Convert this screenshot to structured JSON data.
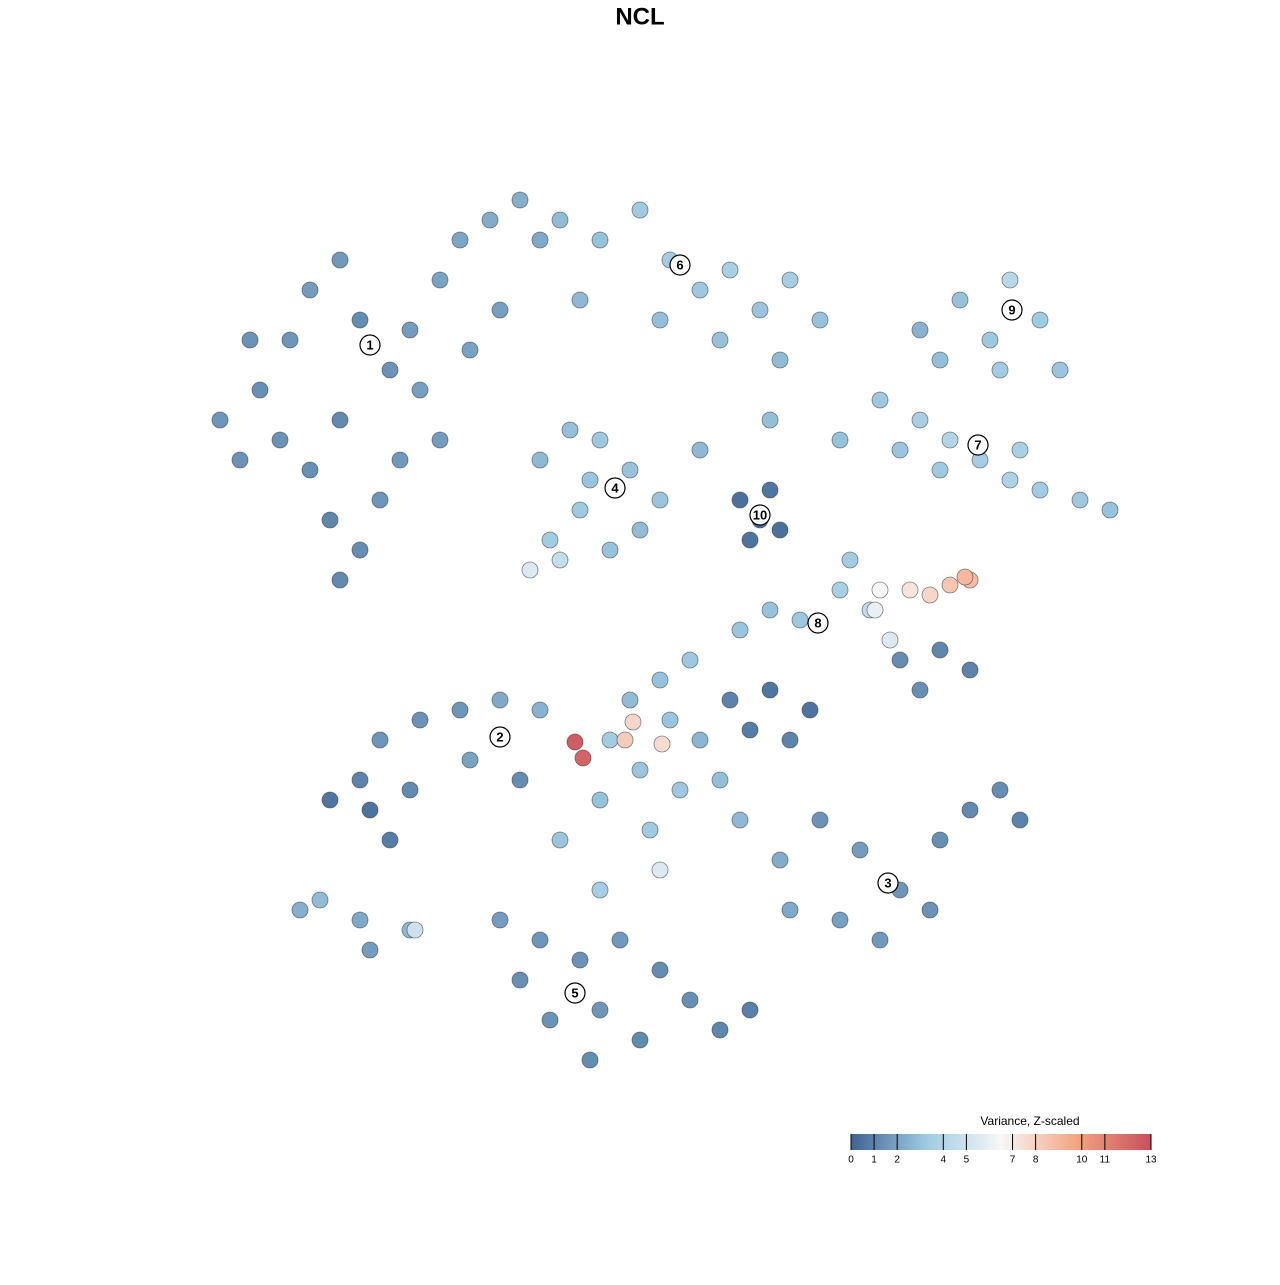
{
  "chart_data": {
    "type": "scatter",
    "title": "NCL",
    "xlim": [
      -50,
      50
    ],
    "ylim": [
      -50,
      50
    ],
    "x": [
      -40,
      -38,
      -35,
      -33,
      -30,
      -28,
      -25,
      -22,
      -20,
      -18,
      -15,
      -12,
      -10,
      -14,
      -30,
      -33,
      -31,
      -28,
      -30,
      -26,
      -24,
      -20,
      -36,
      -42,
      -23,
      -17,
      -39,
      -8,
      -4,
      0,
      3,
      6,
      9,
      12,
      15,
      18,
      -6,
      2,
      8,
      14,
      28,
      32,
      35,
      37,
      40,
      42,
      30,
      36,
      24,
      28,
      31,
      34,
      37,
      40,
      44,
      47,
      26,
      30,
      38,
      20,
      13,
      6,
      -10,
      -7,
      -4,
      -1,
      2,
      -6,
      -9,
      -3,
      0,
      -5,
      -11,
      -8,
      10,
      12,
      13,
      11,
      14,
      21,
      20,
      23,
      16,
      13,
      10,
      26,
      30,
      33,
      28,
      25,
      24,
      27,
      29,
      31,
      33,
      32.5,
      23.5,
      5,
      2,
      -1,
      3,
      6,
      -3,
      0,
      4,
      8,
      10,
      -4,
      -8,
      1,
      2,
      -4,
      9,
      13,
      17,
      15,
      11,
      -6.5,
      -5.7,
      -1.5,
      2.2,
      -0.7,
      -18,
      -14,
      -10,
      -22,
      -26,
      -28,
      -31,
      -27,
      -25,
      -23,
      -17,
      -12,
      -34,
      -32,
      -28,
      -27,
      -23,
      -22.5,
      18,
      22,
      26,
      30,
      33,
      36,
      38,
      24,
      20,
      15,
      29,
      14,
      -14,
      -10,
      -6,
      -2,
      2,
      5,
      0,
      -5,
      -9,
      -12,
      -4,
      8,
      11
    ],
    "y": [
      18,
      25,
      30,
      35,
      38,
      32,
      27,
      25,
      36,
      40,
      42,
      44,
      40,
      33,
      22,
      17,
      12,
      9,
      6,
      14,
      18,
      20,
      20,
      22,
      31,
      29,
      30,
      42,
      40,
      43,
      38,
      35,
      37,
      33,
      36,
      32,
      34,
      32,
      30,
      28,
      31,
      34,
      30,
      36,
      32,
      27,
      28,
      27,
      24,
      22,
      20,
      18,
      16,
      15,
      14,
      13,
      19,
      17,
      19,
      20,
      22,
      19,
      18,
      21,
      20,
      17,
      14,
      13,
      10,
      9,
      11,
      16,
      7,
      8,
      14,
      12,
      15,
      10,
      11,
      8,
      5,
      3,
      2,
      3,
      1,
      -2,
      -1,
      -3,
      -5,
      0,
      5,
      5,
      4.5,
      5.5,
      6,
      6.3,
      3,
      -2,
      -4,
      -6,
      -8,
      -10,
      -10,
      -13,
      -15,
      -14,
      -18,
      -16,
      -20,
      -19,
      -23,
      -25,
      -6,
      -5,
      -7,
      -10,
      -9,
      -10.2,
      -11.8,
      -10,
      -10.4,
      -8.2,
      -7,
      -6,
      -7,
      -8,
      -10,
      -14,
      -16,
      -17,
      -20,
      -15,
      -12,
      -14,
      -27,
      -26,
      -28,
      -31,
      -29,
      -29,
      -18,
      -21,
      -25,
      -20,
      -17,
      -15,
      -18,
      -30,
      -28,
      -27,
      -27,
      -22,
      -28,
      -30,
      -32,
      -30,
      -33,
      -36,
      -40,
      -42,
      -38,
      -34,
      -37,
      -39,
      -37
    ],
    "values": [
      1.5,
      1.4,
      1.6,
      1.8,
      1.7,
      1.3,
      1.5,
      1.9,
      2.0,
      2.1,
      2.3,
      2.4,
      2.2,
      1.9,
      1.2,
      1.4,
      1.1,
      1.3,
      1.2,
      1.6,
      1.7,
      1.8,
      1.5,
      1.6,
      1.8,
      2.0,
      1.5,
      2.8,
      3.0,
      3.3,
      3.4,
      3.2,
      3.6,
      3.1,
      3.5,
      3.0,
      2.7,
      2.9,
      3.0,
      2.8,
      2.5,
      3.0,
      3.2,
      4.2,
      3.3,
      3.1,
      2.9,
      3.4,
      3.2,
      3.6,
      4.0,
      3.5,
      3.8,
      3.4,
      3.2,
      3.0,
      3.1,
      3.3,
      3.7,
      3.0,
      2.9,
      2.7,
      2.7,
      2.9,
      3.2,
      3.0,
      3.1,
      3.3,
      3.4,
      3.0,
      2.8,
      3.1,
      5.5,
      4.6,
      0.4,
      0.3,
      0.6,
      0.5,
      0.4,
      3.4,
      3.6,
      4.5,
      3.2,
      3.0,
      3.1,
      1.3,
      1.1,
      1.0,
      1.4,
      5.5,
      6.5,
      7.2,
      7.8,
      8.4,
      8.8,
      9.0,
      6.0,
      3.2,
      3.0,
      2.8,
      3.1,
      2.6,
      3.4,
      3.1,
      3.2,
      2.9,
      2.7,
      3.0,
      3.1,
      3.3,
      5.5,
      3.5,
      1.0,
      0.6,
      0.5,
      1.0,
      0.8,
      12.5,
      12.2,
      8.2,
      7.6,
      7.8,
      1.6,
      2.2,
      2.5,
      1.5,
      1.6,
      1.0,
      0.6,
      0.5,
      0.8,
      1.2,
      2.0,
      1.3,
      2.4,
      2.8,
      2.2,
      1.8,
      2.7,
      5.0,
      1.5,
      1.8,
      1.6,
      1.4,
      1.2,
      1.3,
      1.0,
      1.7,
      1.9,
      2.2,
      1.5,
      2.3,
      1.8,
      1.6,
      1.5,
      1.7,
      1.3,
      1.4,
      1.2,
      1.3,
      1.5,
      1.4,
      1.6,
      1.1,
      0.9
    ],
    "labels": [
      {
        "text": "1",
        "x": -27,
        "y": 29.5
      },
      {
        "text": "2",
        "x": -14,
        "y": -9.7
      },
      {
        "text": "3",
        "x": 24.8,
        "y": -24.3
      },
      {
        "text": "4",
        "x": -2.5,
        "y": 15.2
      },
      {
        "text": "5",
        "x": -6.5,
        "y": -35.3
      },
      {
        "text": "6",
        "x": 4,
        "y": 37.5
      },
      {
        "text": "7",
        "x": 33.8,
        "y": 19.5
      },
      {
        "text": "8",
        "x": 17.8,
        "y": 1.7
      },
      {
        "text": "9",
        "x": 37.2,
        "y": 33
      },
      {
        "text": "10",
        "x": 12,
        "y": 12.5
      }
    ],
    "colorbar": {
      "title": "Variance, Z-scaled",
      "lim": [
        0,
        13
      ],
      "ticks": [
        0,
        1,
        2,
        4,
        5,
        7,
        8,
        10,
        11,
        13
      ],
      "colors": [
        "#3e6493",
        "#9ecae1",
        "#f7f7f7",
        "#f4a582",
        "#c94f5d"
      ]
    }
  }
}
